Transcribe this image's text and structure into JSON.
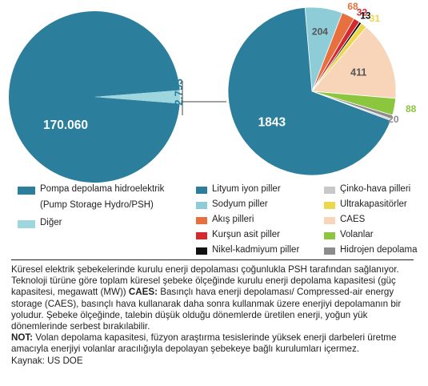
{
  "chart_data": [
    {
      "type": "pie",
      "labels": [
        "Pompa depolama hidroelektrik (Pump Storage Hydro/PSH)",
        "Diğer"
      ],
      "values": [
        170060,
        2793
      ],
      "value_labels": [
        "170.060",
        "2.793"
      ],
      "colors": [
        "#2b7f9c",
        "#9ed6df"
      ]
    },
    {
      "type": "pie",
      "labels": [
        "Lityum iyon piller",
        "Sodyum piller",
        "Akış pilleri",
        "Kurşun asit piller",
        "Nikel-kadmiyum piller",
        "Ultrakapasitörler",
        "CAES",
        "Volanlar",
        "Hidrojen depolama",
        "Çinko-hava pilleri"
      ],
      "values": [
        1843,
        204,
        68,
        32,
        13,
        31,
        411,
        88,
        20,
        0
      ],
      "value_labels": [
        "1843",
        "204",
        "68",
        "32",
        "13",
        "31",
        "411",
        "88",
        "20",
        ""
      ],
      "colors": [
        "#2b7f9c",
        "#8ecdd8",
        "#e8703f",
        "#d7282e",
        "#111111",
        "#ecd64a",
        "#f8d4b8",
        "#8cc63f",
        "#8c8c8c",
        "#c8c8c8"
      ]
    }
  ],
  "legend_left": [
    {
      "label": "Pompa depolama hidroelektrik",
      "sub": "(Pump Storage Hydro/PSH)",
      "color": "#2b7f9c"
    },
    {
      "label": "Diğer",
      "color": "#9ed6df"
    }
  ],
  "legend_mid": [
    {
      "label": "Lityum iyon piller",
      "color": "#2b7f9c"
    },
    {
      "label": "Sodyum piller",
      "color": "#8ecdd8"
    },
    {
      "label": "Akış pilleri",
      "color": "#e8703f"
    },
    {
      "label": "Kurşun asit piller",
      "color": "#d7282e"
    },
    {
      "label": "Nikel-kadmiyum piller",
      "color": "#111111"
    }
  ],
  "legend_right": [
    {
      "label": "Çinko-hava pilleri",
      "color": "#c8c8c8"
    },
    {
      "label": "Ultrakapasitörler",
      "color": "#ecd64a"
    },
    {
      "label": "CAES",
      "color": "#f8d4b8"
    },
    {
      "label": "Volanlar",
      "color": "#8cc63f"
    },
    {
      "label": "Hidrojen depolama",
      "color": "#8c8c8c"
    }
  ],
  "notes": {
    "line1": "Küresel elektrik şebekelerinde kurulu enerji depolaması çoğunlukla PSH tarafından sağlanıyor. Teknoloji türüne göre toplam küresel şebeke ölçeğinde kurulu enerji depolama kapasitesi (güç kapasitesi, megawatt (MW))",
    "caes_label": "CAES:",
    "caes_text": "Basınçlı hava enerji depolaması/ Compressed-air energy storage (CAES), basınçlı hava kullanarak daha sonra kullanmak üzere enerjiyi depolamanın bir yoludur. Şebeke ölçeğinde, talebin düşük olduğu dönemlerde üretilen enerji, yoğun yük dönemlerinde serbest bırakılabilir.",
    "not_label": "NOT:",
    "not_text": "Volan depolama kapasitesi, füzyon araştırma tesislerinde yüksek enerji darbeleri üretme amacıyla enerjiyi volanlar aracılığıyla depolayan şebekeye bağlı kurulumları içermez.",
    "source": "Kaynak: US DOE"
  }
}
